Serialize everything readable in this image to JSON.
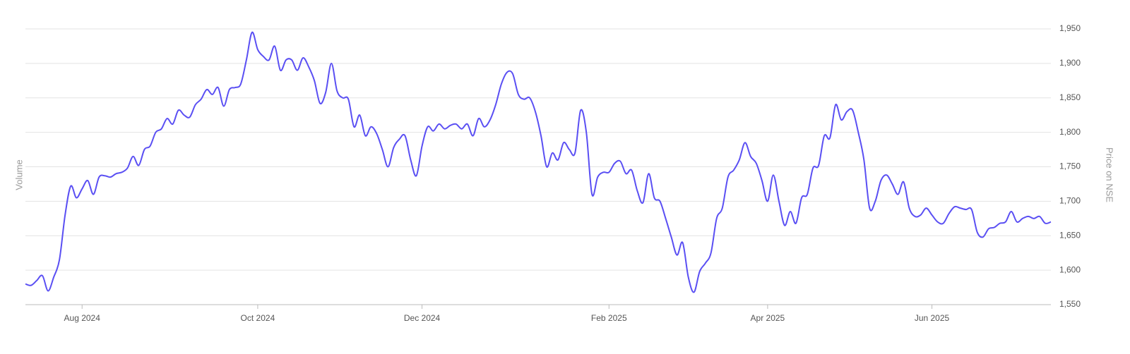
{
  "chart_data": {
    "type": "line",
    "y_axis_left_label": "Volume",
    "y_axis_right_label": "Price on NSE",
    "color": "#5a4ff3",
    "grid": true,
    "ylim": [
      1550,
      1950
    ],
    "yticks": [
      {
        "value": 1550,
        "label": "1,550"
      },
      {
        "value": 1600,
        "label": "1,600"
      },
      {
        "value": 1650,
        "label": "1,650"
      },
      {
        "value": 1700,
        "label": "1,700"
      },
      {
        "value": 1750,
        "label": "1,750"
      },
      {
        "value": 1800,
        "label": "1,800"
      },
      {
        "value": 1850,
        "label": "1,850"
      },
      {
        "value": 1900,
        "label": "1,900"
      },
      {
        "value": 1950,
        "label": "1,950"
      }
    ],
    "categories": [
      null,
      null,
      null,
      null,
      null,
      null,
      null,
      null,
      null,
      null,
      "Aug 2024",
      null,
      null,
      null,
      null,
      null,
      null,
      null,
      null,
      null,
      null,
      null,
      null,
      null,
      null,
      null,
      null,
      null,
      null,
      null,
      null,
      null,
      null,
      null,
      null,
      null,
      null,
      null,
      null,
      null,
      null,
      "Oct 2024",
      null,
      null,
      null,
      null,
      null,
      null,
      null,
      null,
      null,
      null,
      null,
      null,
      null,
      null,
      null,
      null,
      null,
      null,
      null,
      null,
      null,
      null,
      null,
      null,
      null,
      null,
      null,
      null,
      "Dec 2024",
      null,
      null,
      null,
      null,
      null,
      null,
      null,
      null,
      null,
      null,
      null,
      null,
      null,
      null,
      null,
      null,
      null,
      null,
      null,
      null,
      null,
      null,
      null,
      null,
      null,
      null,
      null,
      null,
      null,
      null,
      null,
      null,
      "Feb 2025",
      null,
      null,
      null,
      null,
      null,
      null,
      null,
      null,
      null,
      null,
      null,
      null,
      null,
      null,
      null,
      null,
      null,
      null,
      null,
      null,
      null,
      null,
      null,
      null,
      null,
      null,
      null,
      "Apr 2025",
      null,
      null,
      null,
      null,
      null,
      null,
      null,
      null,
      null,
      null,
      null,
      null,
      null,
      null,
      null,
      null,
      null,
      null,
      null,
      null,
      null,
      null,
      null,
      null,
      null,
      null,
      null,
      null,
      "Jun 2025",
      null,
      null,
      null,
      null,
      null,
      null,
      null,
      null,
      null,
      null,
      null,
      null,
      null,
      null,
      null,
      null,
      null,
      null,
      null,
      null,
      null
    ],
    "values": [
      1580,
      1578,
      1585,
      1592,
      1570,
      1590,
      1615,
      1680,
      1722,
      1705,
      1718,
      1730,
      1710,
      1735,
      1737,
      1735,
      1740,
      1742,
      1748,
      1765,
      1752,
      1775,
      1780,
      1800,
      1805,
      1820,
      1812,
      1832,
      1825,
      1822,
      1840,
      1848,
      1862,
      1855,
      1865,
      1838,
      1862,
      1865,
      1870,
      1905,
      1945,
      1920,
      1910,
      1905,
      1925,
      1890,
      1905,
      1905,
      1890,
      1908,
      1895,
      1875,
      1842,
      1858,
      1900,
      1860,
      1850,
      1848,
      1808,
      1825,
      1795,
      1808,
      1798,
      1775,
      1750,
      1778,
      1790,
      1795,
      1760,
      1737,
      1780,
      1808,
      1802,
      1812,
      1805,
      1810,
      1812,
      1805,
      1812,
      1795,
      1820,
      1808,
      1818,
      1840,
      1870,
      1887,
      1885,
      1855,
      1848,
      1850,
      1830,
      1795,
      1750,
      1770,
      1760,
      1785,
      1775,
      1770,
      1832,
      1800,
      1710,
      1735,
      1742,
      1742,
      1755,
      1758,
      1740,
      1745,
      1715,
      1698,
      1740,
      1705,
      1700,
      1675,
      1648,
      1622,
      1640,
      1590,
      1568,
      1598,
      1610,
      1625,
      1675,
      1690,
      1735,
      1745,
      1760,
      1785,
      1765,
      1755,
      1730,
      1700,
      1738,
      1700,
      1665,
      1685,
      1668,
      1705,
      1710,
      1748,
      1752,
      1795,
      1792,
      1840,
      1818,
      1830,
      1832,
      1800,
      1760,
      1690,
      1700,
      1730,
      1738,
      1725,
      1710,
      1728,
      1690,
      1678,
      1680,
      1690,
      1680,
      1670,
      1668,
      1682,
      1692,
      1690,
      1688,
      1688,
      1655,
      1648,
      1660,
      1662,
      1668,
      1670,
      1685,
      1670,
      1675,
      1678,
      1675,
      1678,
      1668,
      1670
    ]
  }
}
